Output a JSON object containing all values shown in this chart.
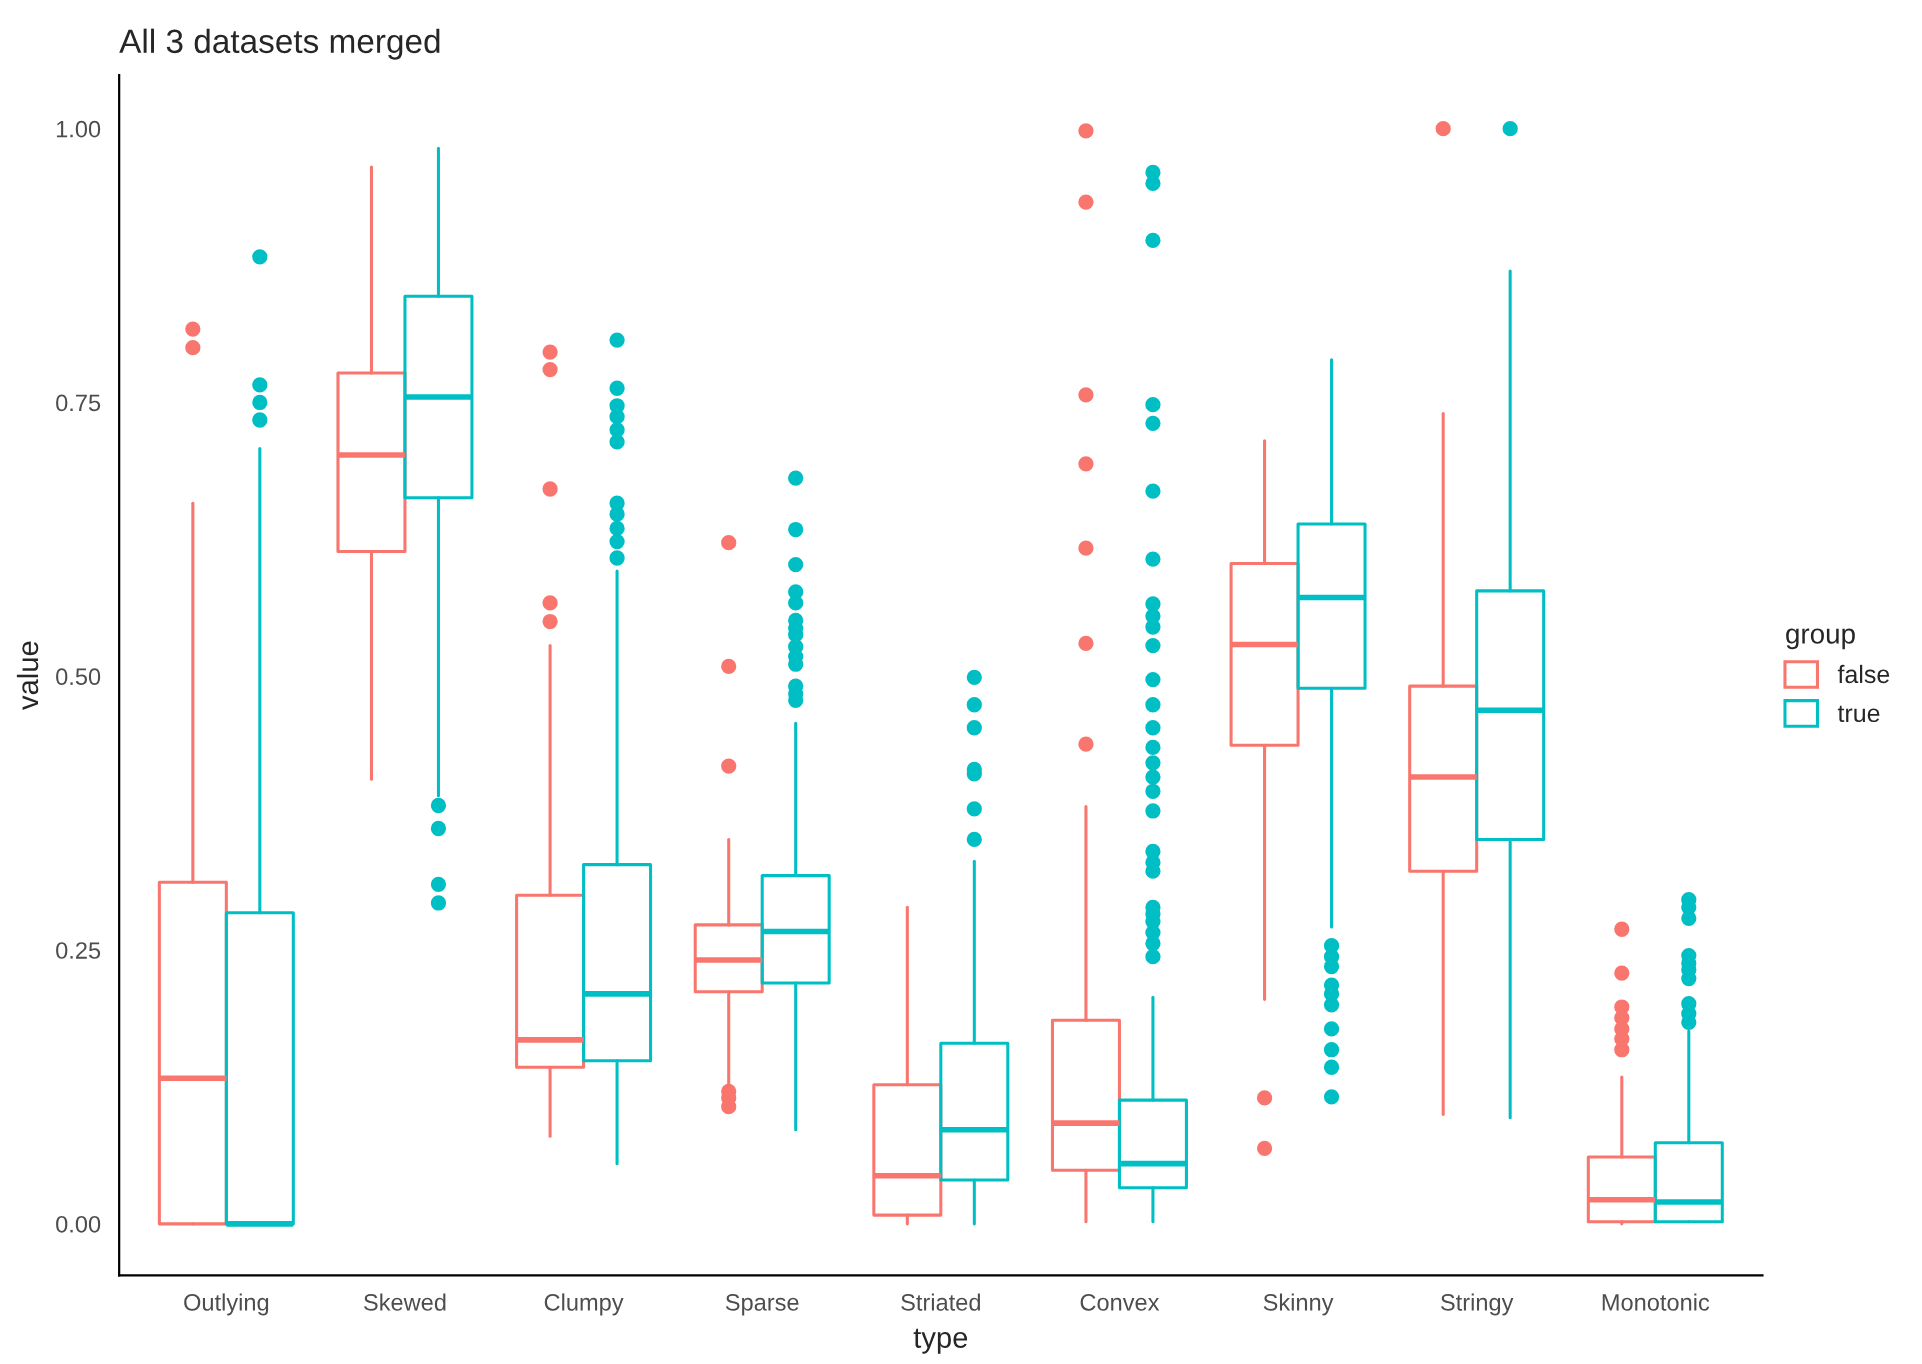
{
  "chart_data": {
    "type": "box",
    "title": "All 3 datasets merged",
    "xlabel": "type",
    "ylabel": "value",
    "legend_title": "group",
    "legend": "right",
    "grid": false,
    "categories": [
      "Outlying",
      "Skewed",
      "Clumpy",
      "Sparse",
      "Striated",
      "Convex",
      "Skinny",
      "Stringy",
      "Monotonic"
    ],
    "ylim": [
      -0.047,
      1.049
    ],
    "yticks": [
      {
        "value": 0,
        "label": "0.00"
      },
      {
        "value": 0.25,
        "label": "0.25"
      },
      {
        "value": 0.5,
        "label": "0.50"
      },
      {
        "value": 0.75,
        "label": "0.75"
      },
      {
        "value": 1,
        "label": "1.00"
      }
    ],
    "series": [
      {
        "name": "false",
        "color": "#f8766d",
        "boxes": [
          {
            "low": 0,
            "q1": 0,
            "median": 0.133,
            "q3": 0.312,
            "high": 0.658,
            "outliers": [
              0.8,
              0.817
            ]
          },
          {
            "low": 0.406,
            "q1": 0.614,
            "median": 0.702,
            "q3": 0.777,
            "high": 0.965
          },
          {
            "low": 0.08,
            "q1": 0.143,
            "median": 0.168,
            "q3": 0.3,
            "high": 0.528,
            "outliers": [
              0.55,
              0.567,
              0.671,
              0.78,
              0.796
            ]
          },
          {
            "low": 0.127,
            "q1": 0.212,
            "median": 0.241,
            "q3": 0.273,
            "high": 0.351,
            "outliers": [
              0.107,
              0.115,
              0.121,
              0.418,
              0.509,
              0.622
            ]
          },
          {
            "low": 0,
            "q1": 0.008,
            "median": 0.044,
            "q3": 0.127,
            "high": 0.289
          },
          {
            "low": 0.002,
            "q1": 0.049,
            "median": 0.092,
            "q3": 0.186,
            "high": 0.381,
            "outliers": [
              0.438,
              0.53,
              0.617,
              0.694,
              0.757,
              0.933,
              0.998
            ]
          },
          {
            "low": 0.205,
            "q1": 0.437,
            "median": 0.529,
            "q3": 0.603,
            "high": 0.715,
            "outliers": [
              0.069,
              0.115
            ]
          },
          {
            "low": 0.1,
            "q1": 0.322,
            "median": 0.408,
            "q3": 0.491,
            "high": 0.74,
            "outliers": [
              1.0
            ]
          },
          {
            "low": 0,
            "q1": 0.002,
            "median": 0.022,
            "q3": 0.061,
            "high": 0.134,
            "outliers": [
              0.159,
              0.169,
              0.178,
              0.188,
              0.198,
              0.229,
              0.269
            ]
          }
        ]
      },
      {
        "name": "true",
        "color": "#00bfc4",
        "boxes": [
          {
            "low": 0,
            "q1": 0,
            "median": 0,
            "q3": 0.284,
            "high": 0.708,
            "outliers": [
              0.734,
              0.75,
              0.766,
              0.883
            ]
          },
          {
            "low": 0.391,
            "q1": 0.663,
            "median": 0.755,
            "q3": 0.847,
            "high": 0.982,
            "outliers": [
              0.293,
              0.31,
              0.361,
              0.382
            ]
          },
          {
            "low": 0.055,
            "q1": 0.149,
            "median": 0.21,
            "q3": 0.328,
            "high": 0.596,
            "outliers": [
              0.608,
              0.623,
              0.635,
              0.648,
              0.658,
              0.714,
              0.725,
              0.737,
              0.747,
              0.763,
              0.807
            ]
          },
          {
            "low": 0.086,
            "q1": 0.22,
            "median": 0.267,
            "q3": 0.318,
            "high": 0.457,
            "outliers": [
              0.478,
              0.484,
              0.491,
              0.511,
              0.518,
              0.527,
              0.538,
              0.544,
              0.551,
              0.567,
              0.577,
              0.602,
              0.634,
              0.681
            ]
          },
          {
            "low": 0,
            "q1": 0.04,
            "median": 0.086,
            "q3": 0.165,
            "high": 0.331,
            "outliers": [
              0.351,
              0.379,
              0.411,
              0.415,
              0.453,
              0.474,
              0.499
            ]
          },
          {
            "low": 0.002,
            "q1": 0.033,
            "median": 0.055,
            "q3": 0.113,
            "high": 0.207,
            "outliers": [
              0.244,
              0.256,
              0.266,
              0.276,
              0.283,
              0.289,
              0.322,
              0.33,
              0.34,
              0.377,
              0.395,
              0.408,
              0.421,
              0.435,
              0.453,
              0.474,
              0.497,
              0.528,
              0.545,
              0.555,
              0.566,
              0.607,
              0.669,
              0.731,
              0.748,
              0.898,
              0.95,
              0.96
            ]
          },
          {
            "low": 0.271,
            "q1": 0.489,
            "median": 0.572,
            "q3": 0.639,
            "high": 0.789,
            "outliers": [
              0.116,
              0.143,
              0.159,
              0.178,
              0.2,
              0.21,
              0.218,
              0.235,
              0.244,
              0.254
            ]
          },
          {
            "low": 0.097,
            "q1": 0.351,
            "median": 0.469,
            "q3": 0.578,
            "high": 0.87,
            "outliers": [
              1.0
            ]
          },
          {
            "low": 0.002,
            "q1": 0.002,
            "median": 0.02,
            "q3": 0.074,
            "high": 0.176,
            "outliers": [
              0.184,
              0.192,
              0.201,
              0.224,
              0.232,
              0.238,
              0.245,
              0.279,
              0.289,
              0.296
            ]
          }
        ]
      }
    ]
  }
}
